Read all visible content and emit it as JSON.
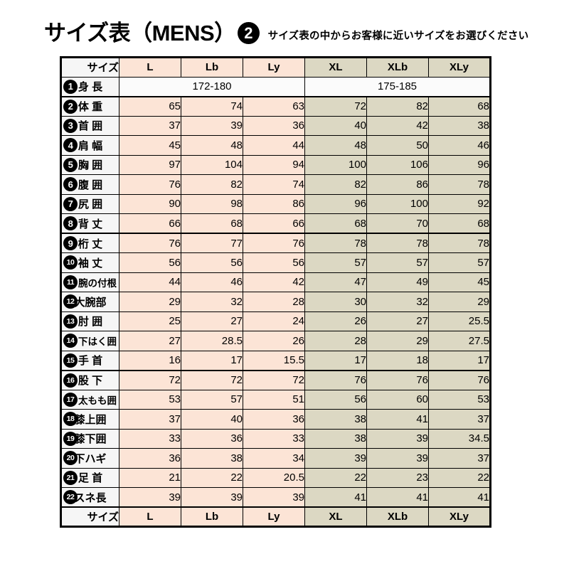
{
  "header": {
    "title": "サイズ表（MENS）",
    "badge": "2",
    "subtitle": "サイズ表の中からお客様に近いサイズをお選びください"
  },
  "colors": {
    "peach_group": "#fce4d6",
    "tan_group": "#dcd8c3",
    "label_bg": "#f6f6f6",
    "border": "#000000",
    "badge_bg": "#000000"
  },
  "table": {
    "size_label": "サイズ",
    "columns": [
      "L",
      "Lb",
      "Ly",
      "XL",
      "XLb",
      "XLy"
    ],
    "height_row": {
      "num": "1",
      "label": "身 長",
      "left_range": "172-180",
      "right_range": "175-185",
      "group_end": true
    },
    "rows": [
      {
        "num": "2",
        "label": "体 重",
        "values": [
          "65",
          "74",
          "63",
          "72",
          "82",
          "68"
        ],
        "group_end": false
      },
      {
        "num": "3",
        "label": "首 囲",
        "values": [
          "37",
          "39",
          "36",
          "40",
          "42",
          "38"
        ],
        "group_end": false
      },
      {
        "num": "4",
        "label": "肩 幅",
        "values": [
          "45",
          "48",
          "44",
          "48",
          "50",
          "46"
        ],
        "group_end": false
      },
      {
        "num": "5",
        "label": "胸 囲",
        "values": [
          "97",
          "104",
          "94",
          "100",
          "106",
          "96"
        ],
        "group_end": false
      },
      {
        "num": "6",
        "label": "腹 囲",
        "values": [
          "76",
          "82",
          "74",
          "82",
          "86",
          "78"
        ],
        "group_end": false
      },
      {
        "num": "7",
        "label": "尻 囲",
        "values": [
          "90",
          "98",
          "86",
          "96",
          "100",
          "92"
        ],
        "group_end": false
      },
      {
        "num": "8",
        "label": "背 丈",
        "values": [
          "66",
          "68",
          "66",
          "68",
          "70",
          "68"
        ],
        "group_end": true
      },
      {
        "num": "9",
        "label": "桁 丈",
        "values": [
          "76",
          "77",
          "76",
          "78",
          "78",
          "78"
        ],
        "group_end": false
      },
      {
        "num": "10",
        "label": "袖 丈",
        "values": [
          "56",
          "56",
          "56",
          "57",
          "57",
          "57"
        ],
        "group_end": false
      },
      {
        "num": "11",
        "label": "腕の付根",
        "values": [
          "44",
          "46",
          "42",
          "47",
          "49",
          "45"
        ],
        "group_end": false
      },
      {
        "num": "12",
        "label": "大腕部",
        "values": [
          "29",
          "32",
          "28",
          "30",
          "32",
          "29"
        ],
        "group_end": false
      },
      {
        "num": "13",
        "label": "肘 囲",
        "values": [
          "25",
          "27",
          "24",
          "26",
          "27",
          "25.5"
        ],
        "group_end": false
      },
      {
        "num": "14",
        "label": "下はく囲",
        "values": [
          "27",
          "28.5",
          "26",
          "28",
          "29",
          "27.5"
        ],
        "group_end": false
      },
      {
        "num": "15",
        "label": "手 首",
        "values": [
          "16",
          "17",
          "15.5",
          "17",
          "18",
          "17"
        ],
        "group_end": true
      },
      {
        "num": "16",
        "label": "股 下",
        "values": [
          "72",
          "72",
          "72",
          "76",
          "76",
          "76"
        ],
        "group_end": false
      },
      {
        "num": "17",
        "label": "太もも囲",
        "values": [
          "53",
          "57",
          "51",
          "56",
          "60",
          "53"
        ],
        "group_end": false
      },
      {
        "num": "18",
        "label": "膝上囲",
        "values": [
          "37",
          "40",
          "36",
          "38",
          "41",
          "37"
        ],
        "group_end": false
      },
      {
        "num": "19",
        "label": "膝下囲",
        "values": [
          "33",
          "36",
          "33",
          "38",
          "39",
          "34.5"
        ],
        "group_end": false
      },
      {
        "num": "20",
        "label": "下ハギ",
        "values": [
          "36",
          "38",
          "34",
          "39",
          "39",
          "37"
        ],
        "group_end": false
      },
      {
        "num": "21",
        "label": "足 首",
        "values": [
          "21",
          "22",
          "20.5",
          "22",
          "23",
          "22"
        ],
        "group_end": false
      },
      {
        "num": "22",
        "label": "スネ長",
        "values": [
          "39",
          "39",
          "39",
          "41",
          "41",
          "41"
        ],
        "group_end": true
      }
    ]
  }
}
